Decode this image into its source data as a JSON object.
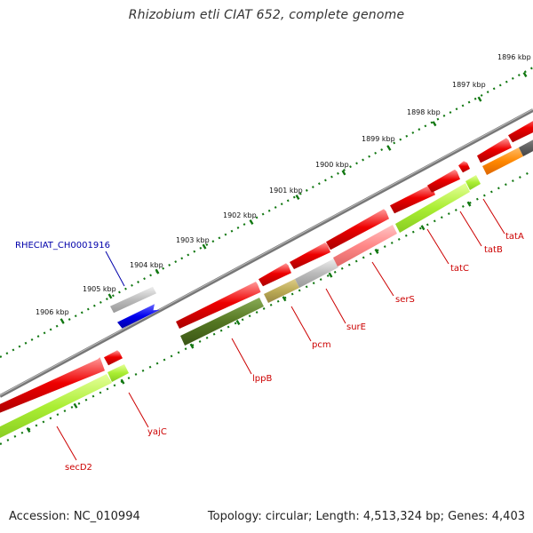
{
  "title": "Rhizobium etli CIAT 652, complete genome",
  "footer": {
    "accession": "Accession: NC_010994",
    "summary": "Topology: circular; Length: 4,513,324 bp; Genes: 4,403"
  },
  "ruler": {
    "labels": [
      "1896 kbp",
      "1897 kbp",
      "1898 kbp",
      "1899 kbp",
      "1900 kbp",
      "1901 kbp",
      "1902 kbp",
      "1903 kbp",
      "1904 kbp",
      "1905 kbp",
      "1906 kbp"
    ]
  },
  "features": [
    {
      "label": "RHECIAT_CH0001916",
      "kind": "feature"
    },
    {
      "label": "tatA",
      "kind": "gene"
    },
    {
      "label": "tatB",
      "kind": "gene"
    },
    {
      "label": "tatC",
      "kind": "gene"
    },
    {
      "label": "serS",
      "kind": "gene"
    },
    {
      "label": "surE",
      "kind": "gene"
    },
    {
      "label": "pcm",
      "kind": "gene"
    },
    {
      "label": "lppB",
      "kind": "gene"
    },
    {
      "label": "yajC",
      "kind": "gene"
    },
    {
      "label": "secD2",
      "kind": "gene"
    }
  ],
  "colors": {
    "cds_forward": "#ee0000",
    "gene_reverse": "#aaee33",
    "gene_dark": "#557722",
    "gene_orange": "#ff8800",
    "gene_olive": "#bbaa55",
    "misc_grey": "#bbbbbb",
    "misc_pink": "#ff8888",
    "misc_blue": "#0000ee",
    "backbone": "#777777",
    "ruler": "#117711",
    "label_gene": "#cc0000",
    "label_feature": "#0000aa"
  }
}
